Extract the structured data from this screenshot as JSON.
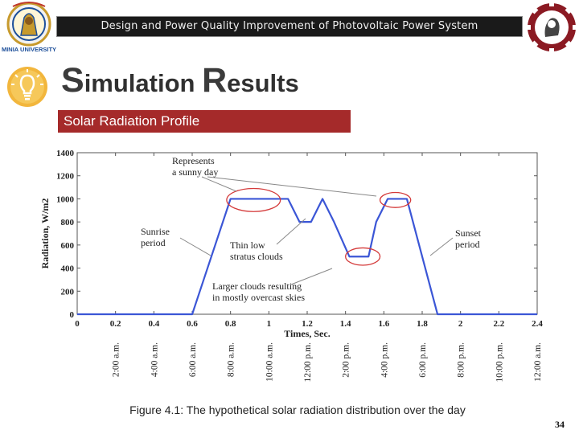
{
  "header": {
    "banner_text": "Design and Power Quality Improvement of Photovoltaic Power System",
    "left_logo_text": "MINIA UNIVERSITY"
  },
  "slide": {
    "title_first_letter": "S",
    "title_rest_1": "imulation ",
    "title_second_letter": "R",
    "title_rest_2": "esults",
    "subtitle": "Solar Radiation Profile",
    "caption": "Figure 4.1: The hypothetical solar radiation distribution over the day",
    "page_number": "34"
  },
  "chart_data": {
    "type": "line",
    "title": "",
    "xlabel": "Times, Sec.",
    "ylabel": "Radiation, W/m2",
    "xlim": [
      0,
      2.4
    ],
    "ylim": [
      0,
      1400
    ],
    "x_ticks": [
      "0",
      "0.2",
      "0.4",
      "0.6",
      "0.8",
      "1",
      "1.2",
      "1.4",
      "1.6",
      "1.8",
      "2",
      "2.2",
      "2.4"
    ],
    "y_ticks": [
      "0",
      "200",
      "400",
      "600",
      "800",
      "1000",
      "1200",
      "1400"
    ],
    "time_of_day_labels": [
      "2:00 a.m.",
      "4:00 a.m.",
      "6:00 a.m.",
      "8:00 a.m.",
      "10:00 a.m.",
      "12:00 p.m.",
      "2:00 p.m.",
      "4:00 p.m.",
      "6:00 p.m.",
      "8:00 p.m.",
      "10:00 p.m.",
      "12:00 a.m."
    ],
    "grid": false,
    "series": [
      {
        "x": [
          0,
          0.6,
          0.8,
          1.0,
          1.1,
          1.16,
          1.22,
          1.28,
          1.34,
          1.42,
          1.46,
          1.52,
          1.56,
          1.62,
          1.72,
          1.88,
          2.4
        ],
        "y": [
          0,
          0,
          1000,
          1000,
          1000,
          800,
          800,
          1000,
          800,
          500,
          500,
          500,
          800,
          1000,
          1000,
          0,
          0
        ],
        "color": "#3b56d6"
      }
    ],
    "annotations": [
      {
        "text": "Represents\na sunny day",
        "x": 1.0,
        "y": 1250
      },
      {
        "text": "Sunrise\nperiod",
        "x": 0.63,
        "y": 650
      },
      {
        "text": "Thin low\nstratus clouds",
        "x": 1.0,
        "y": 530
      },
      {
        "text": "Larger clouds resulting\nin mostly overcast skies",
        "x": 1.05,
        "y": 180
      },
      {
        "text": "Sunset\nperiod",
        "x": 2.03,
        "y": 640
      }
    ],
    "highlight_ellipses": [
      {
        "cx": 0.92,
        "cy": 990,
        "rx": 0.14,
        "ry": 100
      },
      {
        "cx": 1.66,
        "cy": 990,
        "rx": 0.08,
        "ry": 65
      },
      {
        "cx": 1.49,
        "cy": 500,
        "rx": 0.09,
        "ry": 75
      }
    ]
  }
}
